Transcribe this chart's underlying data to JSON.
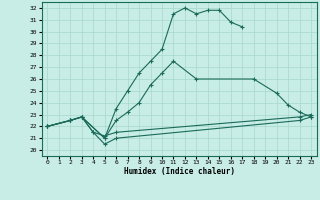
{
  "xlabel": "Humidex (Indice chaleur)",
  "xlim": [
    -0.5,
    23.5
  ],
  "ylim": [
    19.5,
    32.5
  ],
  "yticks": [
    20,
    21,
    22,
    23,
    24,
    25,
    26,
    27,
    28,
    29,
    30,
    31,
    32
  ],
  "xticks": [
    0,
    1,
    2,
    3,
    4,
    5,
    6,
    7,
    8,
    9,
    10,
    11,
    12,
    13,
    14,
    15,
    16,
    17,
    18,
    19,
    20,
    21,
    22,
    23
  ],
  "bg_color": "#c8ece6",
  "grid_color": "#a8d8cc",
  "line_color": "#1a6b5a",
  "curves": [
    {
      "x": [
        0,
        2,
        3,
        5,
        6,
        7,
        8,
        9,
        10,
        11,
        12,
        13,
        14,
        15,
        16,
        17
      ],
      "y": [
        22.0,
        22.5,
        22.8,
        21.0,
        23.5,
        25.0,
        26.5,
        27.5,
        28.5,
        31.5,
        32.0,
        31.5,
        31.8,
        31.8,
        30.8,
        30.4
      ]
    },
    {
      "x": [
        0,
        2,
        3,
        5,
        6,
        7,
        8,
        9,
        10,
        11,
        13,
        18,
        20,
        21,
        22,
        23
      ],
      "y": [
        22.0,
        22.5,
        22.8,
        21.0,
        22.5,
        23.2,
        24.0,
        25.5,
        26.5,
        27.5,
        26.0,
        26.0,
        24.8,
        23.8,
        23.2,
        22.8
      ]
    },
    {
      "x": [
        0,
        2,
        3,
        4,
        5,
        6,
        22,
        23
      ],
      "y": [
        22.0,
        22.5,
        22.8,
        21.5,
        21.2,
        21.5,
        22.8,
        23.0
      ]
    },
    {
      "x": [
        0,
        2,
        3,
        4,
        5,
        6,
        22,
        23
      ],
      "y": [
        22.0,
        22.5,
        22.8,
        21.5,
        20.5,
        21.0,
        22.5,
        22.8
      ]
    }
  ]
}
